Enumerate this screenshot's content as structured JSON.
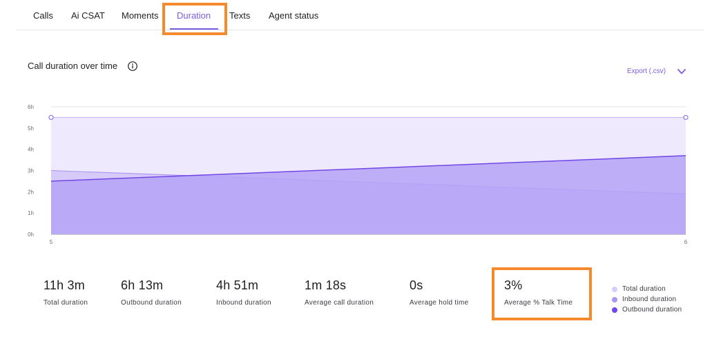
{
  "tabs": [
    {
      "label": "Calls"
    },
    {
      "label": "Ai CSAT"
    },
    {
      "label": "Moments"
    },
    {
      "label": "Duration"
    },
    {
      "label": "Texts"
    },
    {
      "label": "Agent status"
    }
  ],
  "active_tab": "Duration",
  "chart_header": {
    "title": "Call duration over time",
    "export_label": "Export (.csv)"
  },
  "icons": {
    "info": "info-icon",
    "export_chevron": "chevron-down-icon"
  },
  "colors": {
    "accent": "#7c5ce0",
    "highlight": "#f58a2c",
    "total_duration": "#d9ccfb",
    "inbound_duration": "#ab97f3",
    "outbound_duration": "#7146e6"
  },
  "chart_data": {
    "type": "area",
    "x": [
      5,
      6
    ],
    "x_ticks": [
      "5",
      "6"
    ],
    "y_ticks": [
      "0h",
      "1h",
      "2h",
      "3h",
      "4h",
      "5h",
      "6h"
    ],
    "ylim": [
      0,
      6
    ],
    "y_unit": "hours",
    "grid": true,
    "legend_position": "bottom-right",
    "series": [
      {
        "name": "Total duration",
        "values": [
          5.5,
          5.5
        ]
      },
      {
        "name": "Inbound duration",
        "values": [
          3.0,
          1.9
        ]
      },
      {
        "name": "Outbound duration",
        "values": [
          2.5,
          3.7
        ]
      }
    ]
  },
  "stats": [
    {
      "value": "11h 3m",
      "label": "Total duration"
    },
    {
      "value": "6h 13m",
      "label": "Outbound duration"
    },
    {
      "value": "4h 51m",
      "label": "Inbound duration"
    },
    {
      "value": "1m 18s",
      "label": "Average call duration"
    },
    {
      "value": "0s",
      "label": "Average hold time"
    },
    {
      "value": "3%",
      "label": "Average % Talk Time"
    }
  ],
  "legend": [
    {
      "label": "Total duration"
    },
    {
      "label": "Inbound duration"
    },
    {
      "label": "Outbound duration"
    }
  ]
}
